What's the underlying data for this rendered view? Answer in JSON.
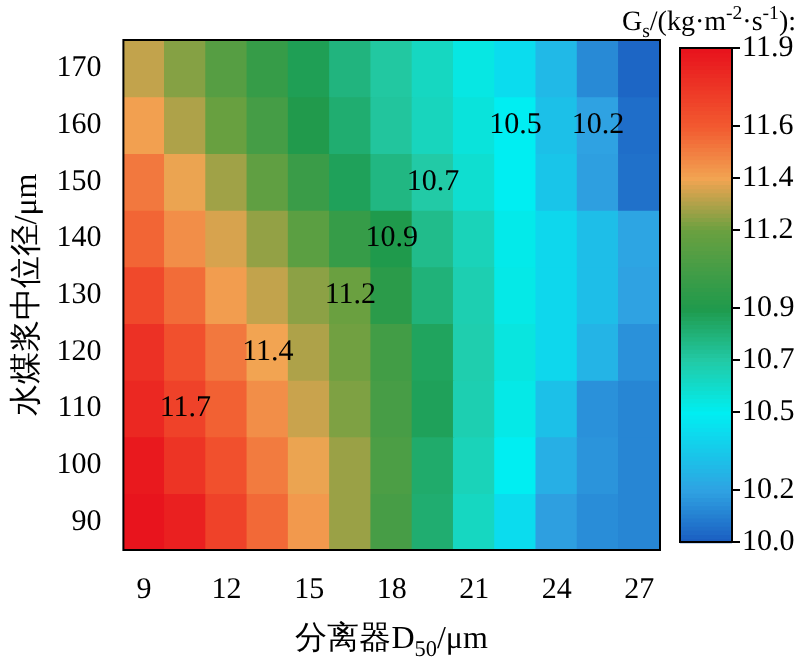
{
  "chart_data": {
    "type": "heatmap",
    "xlabel": "分离器D$_{50}$/μm",
    "ylabel": "水煤浆中位径/μm",
    "clabel": "G$_{s}$/(kg·m$^{-2}$·s$^{-1}$):",
    "categories": [
      "9",
      null,
      "12",
      null,
      "15",
      null,
      "18",
      null,
      "21",
      null,
      "24",
      null,
      "27"
    ],
    "y_categories": [
      "170",
      "160",
      "150",
      "140",
      "130",
      "120",
      "110",
      "100",
      "90"
    ],
    "cells": [
      [
        11.33,
        11.24,
        11.12,
        10.99,
        10.88,
        10.79,
        10.71,
        10.63,
        10.54,
        10.43,
        10.29,
        10.13,
        10.03
      ],
      [
        11.41,
        11.3,
        11.19,
        11.05,
        10.91,
        10.82,
        10.72,
        10.64,
        10.56,
        10.5,
        10.32,
        10.2,
        10.05
      ],
      [
        11.52,
        11.39,
        11.28,
        11.16,
        11.01,
        10.87,
        10.78,
        10.7,
        10.59,
        10.5,
        10.34,
        10.19,
        10.06
      ],
      [
        11.57,
        11.46,
        11.36,
        11.26,
        11.14,
        10.99,
        10.9,
        10.76,
        10.65,
        10.52,
        10.41,
        10.31,
        10.21
      ],
      [
        11.67,
        11.55,
        11.42,
        11.33,
        11.25,
        11.2,
        10.95,
        10.8,
        10.67,
        10.53,
        10.41,
        10.31,
        10.2
      ],
      [
        11.77,
        11.64,
        11.52,
        11.4,
        11.3,
        11.21,
        11.04,
        10.86,
        10.68,
        10.55,
        10.41,
        10.27,
        10.15
      ],
      [
        11.81,
        11.7,
        11.58,
        11.46,
        11.34,
        11.23,
        11.06,
        10.87,
        10.67,
        10.53,
        10.32,
        10.15,
        10.12
      ],
      [
        11.87,
        11.76,
        11.64,
        11.51,
        11.39,
        11.27,
        11.08,
        10.83,
        10.65,
        10.5,
        10.25,
        10.16,
        10.12
      ],
      [
        11.89,
        11.84,
        11.7,
        11.56,
        11.43,
        11.27,
        11.06,
        10.82,
        10.63,
        10.43,
        10.19,
        10.14,
        10.12
      ]
    ],
    "cell_labels": [
      [
        null,
        null,
        null,
        null,
        null,
        null,
        null,
        null,
        null,
        null,
        null,
        null,
        null
      ],
      [
        null,
        null,
        null,
        null,
        null,
        null,
        null,
        null,
        null,
        "10.5",
        null,
        "10.2",
        null
      ],
      [
        null,
        null,
        null,
        null,
        null,
        null,
        null,
        "10.7",
        null,
        null,
        null,
        null,
        null
      ],
      [
        null,
        null,
        null,
        null,
        null,
        null,
        "10.9",
        null,
        null,
        null,
        null,
        null,
        null
      ],
      [
        null,
        null,
        null,
        null,
        null,
        "11.2",
        null,
        null,
        null,
        null,
        null,
        null,
        null
      ],
      [
        null,
        null,
        null,
        "11.4",
        null,
        null,
        null,
        null,
        null,
        null,
        null,
        null,
        null
      ],
      [
        null,
        "11.7",
        null,
        null,
        null,
        null,
        null,
        null,
        null,
        null,
        null,
        null,
        null
      ],
      [
        null,
        null,
        null,
        null,
        null,
        null,
        null,
        null,
        null,
        null,
        null,
        null,
        null
      ],
      [
        null,
        null,
        null,
        null,
        null,
        null,
        null,
        null,
        null,
        null,
        null,
        null,
        null
      ]
    ],
    "clim": [
      10.0,
      11.9
    ],
    "cticks": [
      {
        "value": 10.0,
        "label": "10.0"
      },
      10.2,
      10.5,
      10.7,
      10.9,
      11.2,
      11.4,
      11.6,
      11.9
    ]
  }
}
